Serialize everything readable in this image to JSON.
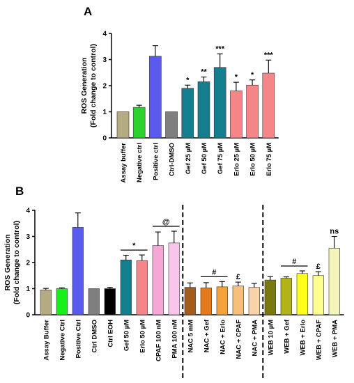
{
  "chart_data": [
    {
      "panel": "A",
      "type": "bar",
      "ylabel": "ROS Generation\n(Fold change to control)",
      "ylim": [
        0,
        4
      ],
      "yticks": [
        0,
        1,
        2,
        3,
        4
      ],
      "categories": [
        "Assay buffer",
        "Negative ctrl",
        "Positive ctrl",
        "Ctrl-DMSO",
        "Gef 25 µM",
        "Gef 50 µM",
        "Gef 75 µM",
        "Erlo 25 µM",
        "Erlo 50 µM",
        "Erlo 75 µM"
      ],
      "values": [
        1.0,
        1.17,
        3.13,
        1.0,
        1.9,
        2.15,
        2.7,
        1.8,
        2.02,
        2.48
      ],
      "errors": [
        0,
        0.08,
        0.4,
        0,
        0.12,
        0.18,
        0.52,
        0.33,
        0.2,
        0.5
      ],
      "colors": [
        "#b5ab82",
        "#2dd12d",
        "#5a5af0",
        "#7f7f7f",
        "#137e8e",
        "#137e8e",
        "#137e8e",
        "#f4868a",
        "#f4868a",
        "#f4868a"
      ],
      "annotations": [
        "",
        "",
        "",
        "",
        "*",
        "**",
        "***",
        "*",
        "*",
        "***"
      ]
    },
    {
      "panel": "B",
      "type": "bar",
      "ylabel": "ROS Generation\n(Fold change to control)",
      "ylim": [
        0,
        4
      ],
      "yticks": [
        0,
        1,
        2,
        3,
        4
      ],
      "categories": [
        "Assay Buffer",
        "Negative Ctrl",
        "Positive Ctrl",
        "Ctrl DMSO",
        "Ctrl EOH",
        "Gef 50 µM",
        "Erlo 50 µM",
        "CPAF 100 nM",
        "PMA 100 nM",
        "NAC 5 mM",
        "NAC + Gef",
        "NAC + Erlo",
        "NAC + CPAF",
        "NAC + PMA",
        "WEB 10 µM",
        "WEB + Gef",
        "WEB + Erlo",
        "WEB + CPAF",
        "WEB + PMA"
      ],
      "values": [
        0.95,
        1.0,
        3.35,
        1.0,
        1.0,
        2.1,
        2.07,
        2.65,
        2.75,
        1.05,
        1.03,
        1.07,
        1.1,
        1.05,
        1.33,
        1.4,
        1.58,
        1.5,
        2.55
      ],
      "errors": [
        0.06,
        0.03,
        0.55,
        0,
        0.05,
        0.18,
        0.22,
        0.52,
        0.45,
        0.17,
        0.2,
        0.2,
        0.15,
        0.15,
        0.13,
        0.05,
        0.1,
        0.15,
        0.45
      ],
      "colors": [
        "#b5ab82",
        "#17f017",
        "#5a5af0",
        "#7f7f7f",
        "#000000",
        "#137e8e",
        "#f4868a",
        "#f5a8d6",
        "#f8c6ea",
        "#a35c1c",
        "#e57a1c",
        "#f4a23c",
        "#f7c07a",
        "#f8d2a8",
        "#79790f",
        "#b2b21a",
        "#ffff1a",
        "#ffff90",
        "#f4f4bb"
      ],
      "annotations": [
        {
          "text": "*",
          "from": 5,
          "to": 6
        },
        {
          "text": "@",
          "from": 7,
          "to": 8
        },
        {
          "text": "#",
          "from": 10,
          "to": 11
        },
        {
          "text": "£",
          "from": 12,
          "to": 12
        },
        {
          "text": "#",
          "from": 15,
          "to": 16
        },
        {
          "text": "£",
          "from": 17,
          "to": 17
        },
        {
          "text": "ns",
          "from": 18,
          "to": 18
        }
      ],
      "separators_after": [
        8,
        13
      ]
    }
  ]
}
